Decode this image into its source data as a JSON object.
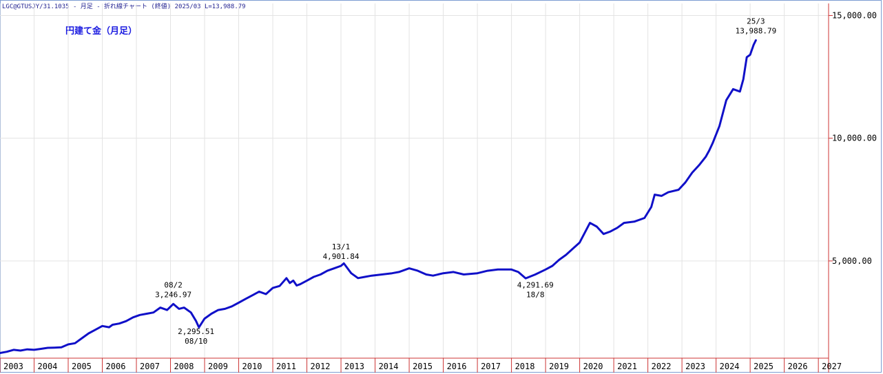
{
  "header": {
    "info": "LGC@GTUSJY/31.1035 - 月足 - 折れ線チャート (終値) 2025/03 L=13,988.79"
  },
  "colors": {
    "line": "#1010c8",
    "axis": "#cc3333",
    "grid": "#e3e3e3",
    "annotation": "#000000"
  },
  "chart_data": {
    "type": "line",
    "title": "円建て金（月足）",
    "xlabel": "",
    "ylabel": "",
    "x_ticks": [
      "2003",
      "2004",
      "2005",
      "2006",
      "2007",
      "2008",
      "2009",
      "2010",
      "2011",
      "2012",
      "2013",
      "2014",
      "2015",
      "2016",
      "2017",
      "2018",
      "2019",
      "2020",
      "2021",
      "2022",
      "2023",
      "2024",
      "2025",
      "2026",
      "2027"
    ],
    "y_ticks": [
      5000,
      10000,
      15000
    ],
    "y_tick_labels": [
      "5,000.00",
      "10,000.00",
      "15,000.00"
    ],
    "xlim": [
      2003.0,
      2027.3
    ],
    "ylim": [
      1040,
      15490
    ],
    "grid": true,
    "series": [
      {
        "x": [
          2003.0,
          2003.2,
          2003.4,
          2003.6,
          2003.8,
          2004.0,
          2004.2,
          2004.4,
          2004.6,
          2004.8,
          2005.0,
          2005.2,
          2005.4,
          2005.6,
          2005.8,
          2006.0,
          2006.2,
          2006.3,
          2006.5,
          2006.7,
          2006.9,
          2007.1,
          2007.3,
          2007.5,
          2007.7,
          2007.9,
          2008.083,
          2008.25,
          2008.4,
          2008.6,
          2008.75,
          2008.833,
          2009.0,
          2009.2,
          2009.4,
          2009.6,
          2009.8,
          2010.0,
          2010.2,
          2010.4,
          2010.6,
          2010.8,
          2011.0,
          2011.2,
          2011.4,
          2011.5,
          2011.6,
          2011.7,
          2011.8,
          2012.0,
          2012.2,
          2012.4,
          2012.6,
          2012.8,
          2013.0,
          2013.083,
          2013.3,
          2013.5,
          2013.7,
          2013.9,
          2014.2,
          2014.5,
          2014.7,
          2015.0,
          2015.25,
          2015.5,
          2015.7,
          2016.0,
          2016.3,
          2016.6,
          2017.0,
          2017.3,
          2017.6,
          2018.0,
          2018.2,
          2018.417,
          2018.7,
          2019.0,
          2019.2,
          2019.4,
          2019.6,
          2019.8,
          2020.0,
          2020.3,
          2020.5,
          2020.7,
          2020.9,
          2021.1,
          2021.3,
          2021.6,
          2021.9,
          2022.1,
          2022.2,
          2022.4,
          2022.6,
          2022.9,
          2023.1,
          2023.3,
          2023.5,
          2023.7,
          2023.8,
          2023.9,
          2024.1,
          2024.3,
          2024.5,
          2024.7,
          2024.8,
          2024.9,
          2025.0,
          2025.1,
          2025.167
        ],
        "values": [
          1250,
          1300,
          1380,
          1350,
          1400,
          1380,
          1420,
          1460,
          1470,
          1480,
          1600,
          1650,
          1850,
          2050,
          2200,
          2350,
          2300,
          2400,
          2450,
          2550,
          2700,
          2800,
          2850,
          2900,
          3100,
          3000,
          3246.97,
          3050,
          3100,
          2900,
          2550,
          2295.51,
          2650,
          2850,
          3000,
          3050,
          3150,
          3300,
          3450,
          3600,
          3750,
          3650,
          3900,
          3980,
          4300,
          4100,
          4200,
          4000,
          4050,
          4200,
          4350,
          4450,
          4600,
          4700,
          4800,
          4901.84,
          4500,
          4300,
          4350,
          4400,
          4450,
          4500,
          4550,
          4700,
          4600,
          4450,
          4400,
          4500,
          4550,
          4450,
          4500,
          4600,
          4650,
          4650,
          4550,
          4291.69,
          4450,
          4650,
          4800,
          5050,
          5250,
          5500,
          5750,
          6550,
          6400,
          6100,
          6200,
          6350,
          6550,
          6600,
          6750,
          7200,
          7700,
          7650,
          7800,
          7900,
          8200,
          8600,
          8900,
          9250,
          9500,
          9800,
          10500,
          11550,
          12000,
          11900,
          12400,
          13300,
          13400,
          13800,
          13988.79
        ]
      }
    ],
    "annotations": [
      {
        "date": "08/2",
        "value": "3,246.97",
        "position": "above"
      },
      {
        "date": "08/10",
        "value": "2,295.51",
        "position": "below"
      },
      {
        "date": "13/1",
        "value": "4,901.84",
        "position": "above"
      },
      {
        "date": "18/8",
        "value": "4,291.69",
        "position": "below"
      },
      {
        "date": "25/3",
        "value": "13,988.79",
        "position": "above"
      }
    ]
  }
}
